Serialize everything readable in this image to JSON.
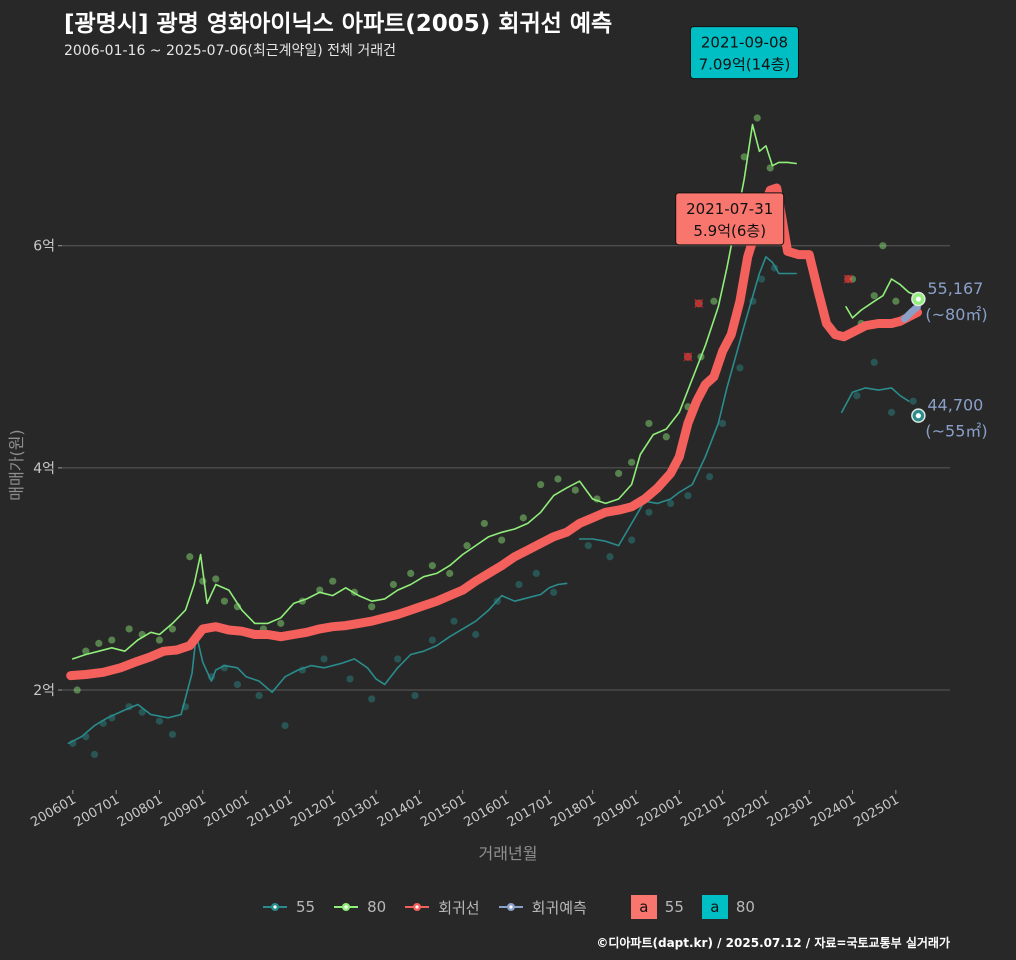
{
  "header": {
    "title": "[광명시] 광명 영화아이닉스 아파트(2005) 회귀선 예측",
    "subtitle": "2006-01-16 ~ 2025-07-06(최근계약일) 전체 거래건"
  },
  "footer": {
    "credit": "©디아파트(dapt.kr) / 2025.07.12 / 자료=국토교통부 실거래가"
  },
  "colors": {
    "background": "#282828",
    "area55": "#2a8c8c",
    "area80": "#90ee7a",
    "regression": "#f4605c",
    "forecast": "#8aa0c8",
    "grid": "#5a5a5a",
    "badge55": "#f8766d",
    "badge80": "#00bfc4"
  },
  "legend": {
    "items": [
      {
        "label": "55",
        "color": "#2a8c8c"
      },
      {
        "label": "80",
        "color": "#90ee7a"
      },
      {
        "label": "회귀선",
        "color": "#f4605c"
      },
      {
        "label": "회귀예측",
        "color": "#8aa0c8"
      }
    ],
    "badge_letter": "a",
    "badges": [
      {
        "label": "55",
        "color": "#f8766d"
      },
      {
        "label": "80",
        "color": "#00bfc4"
      }
    ]
  },
  "chart_data": {
    "type": "line",
    "xlabel": "거래년월",
    "ylabel": "매매가(원)",
    "xlim": [
      2005.75,
      2026.25
    ],
    "ylim": [
      1.1,
      7.6
    ],
    "x_ticks": [
      {
        "label": "200601",
        "x": 2006.0
      },
      {
        "label": "200701",
        "x": 2007.0
      },
      {
        "label": "200801",
        "x": 2008.0
      },
      {
        "label": "200901",
        "x": 2009.0
      },
      {
        "label": "201001",
        "x": 2010.0
      },
      {
        "label": "201101",
        "x": 2011.0
      },
      {
        "label": "201201",
        "x": 2012.0
      },
      {
        "label": "201301",
        "x": 2013.0
      },
      {
        "label": "201401",
        "x": 2014.0
      },
      {
        "label": "201501",
        "x": 2015.0
      },
      {
        "label": "201601",
        "x": 2016.0
      },
      {
        "label": "201701",
        "x": 2017.0
      },
      {
        "label": "201801",
        "x": 2018.0
      },
      {
        "label": "201901",
        "x": 2019.0
      },
      {
        "label": "202001",
        "x": 2020.0
      },
      {
        "label": "202101",
        "x": 2021.0
      },
      {
        "label": "202201",
        "x": 2022.0
      },
      {
        "label": "202301",
        "x": 2023.0
      },
      {
        "label": "202401",
        "x": 2024.0
      },
      {
        "label": "202501",
        "x": 2025.0
      }
    ],
    "y_ticks": [
      {
        "label": "2억",
        "y": 2
      },
      {
        "label": "4억",
        "y": 4
      },
      {
        "label": "6억",
        "y": 6
      }
    ],
    "grid": true,
    "series": [
      {
        "name": "55",
        "x": [
          2005.9,
          2006.2,
          2006.5,
          2006.8,
          2007.2,
          2007.5,
          2007.8,
          2008.2,
          2008.5,
          2008.75,
          2008.85,
          2009.0,
          2009.2,
          2009.3,
          2009.5,
          2009.8,
          2010.0,
          2010.3,
          2010.6,
          2010.9,
          2011.2,
          2011.5,
          2011.8,
          2012.2,
          2012.5,
          2012.8,
          2013.0,
          2013.2,
          2013.5,
          2013.8,
          2014.1,
          2014.4,
          2014.7,
          2015.0,
          2015.3,
          2015.6,
          2015.9,
          2016.2,
          2016.5,
          2016.8,
          2017.0,
          2017.2,
          2017.4
        ],
        "y": [
          1.52,
          1.58,
          1.68,
          1.75,
          1.82,
          1.87,
          1.78,
          1.75,
          1.78,
          2.15,
          2.5,
          2.25,
          2.08,
          2.18,
          2.22,
          2.2,
          2.12,
          2.08,
          1.98,
          2.12,
          2.18,
          2.22,
          2.2,
          2.24,
          2.28,
          2.2,
          2.1,
          2.05,
          2.2,
          2.32,
          2.35,
          2.4,
          2.48,
          2.55,
          2.62,
          2.72,
          2.85,
          2.8,
          2.83,
          2.86,
          2.92,
          2.95,
          2.96
        ]
      },
      {
        "name": "55",
        "x": [
          2017.7,
          2018.0,
          2018.3,
          2018.6,
          2018.9,
          2019.2,
          2019.5,
          2019.8,
          2020.0,
          2020.3,
          2020.6,
          2020.9,
          2021.1,
          2021.3,
          2021.5,
          2021.7,
          2021.85,
          2022.0,
          2022.15,
          2022.3,
          2022.5,
          2022.7
        ],
        "y": [
          3.36,
          3.36,
          3.34,
          3.3,
          3.5,
          3.7,
          3.68,
          3.72,
          3.78,
          3.85,
          4.1,
          4.4,
          4.72,
          5.0,
          5.28,
          5.55,
          5.75,
          5.9,
          5.85,
          5.75,
          5.75,
          5.75
        ]
      },
      {
        "name": "55",
        "x": [
          2023.75,
          2024.0,
          2024.3,
          2024.6,
          2024.9,
          2025.1,
          2025.3
        ],
        "y": [
          4.5,
          4.68,
          4.72,
          4.7,
          4.72,
          4.65,
          4.6
        ]
      },
      {
        "name": "80",
        "x": [
          2006.0,
          2006.3,
          2006.6,
          2006.9,
          2007.2,
          2007.5,
          2007.8,
          2008.0,
          2008.3,
          2008.6,
          2008.8,
          2008.95,
          2009.1,
          2009.3,
          2009.6,
          2009.9,
          2010.2,
          2010.5,
          2010.8,
          2011.1,
          2011.4,
          2011.7,
          2012.0,
          2012.3,
          2012.6,
          2012.9,
          2013.2,
          2013.5,
          2013.8,
          2014.1,
          2014.4,
          2014.7,
          2015.0,
          2015.3,
          2015.6,
          2015.9,
          2016.2,
          2016.5,
          2016.8,
          2017.1,
          2017.4,
          2017.7,
          2018.0,
          2018.3,
          2018.6,
          2018.9,
          2019.1,
          2019.4,
          2019.7,
          2020.0,
          2020.3,
          2020.6,
          2020.9,
          2021.1,
          2021.3,
          2021.5,
          2021.69,
          2021.85,
          2022.0,
          2022.15,
          2022.3,
          2022.5,
          2022.7
        ],
        "y": [
          2.28,
          2.32,
          2.35,
          2.38,
          2.35,
          2.45,
          2.52,
          2.5,
          2.6,
          2.72,
          2.95,
          3.22,
          2.78,
          2.95,
          2.9,
          2.72,
          2.6,
          2.6,
          2.65,
          2.78,
          2.82,
          2.88,
          2.85,
          2.92,
          2.85,
          2.8,
          2.82,
          2.9,
          2.95,
          3.02,
          3.05,
          3.12,
          3.22,
          3.3,
          3.38,
          3.42,
          3.45,
          3.5,
          3.6,
          3.75,
          3.82,
          3.88,
          3.72,
          3.68,
          3.72,
          3.85,
          4.12,
          4.3,
          4.35,
          4.5,
          4.8,
          5.1,
          5.45,
          5.8,
          6.2,
          6.6,
          7.09,
          6.85,
          6.9,
          6.72,
          6.75,
          6.75,
          6.74
        ]
      },
      {
        "name": "80",
        "x": [
          2023.85,
          2024.0,
          2024.2,
          2024.5,
          2024.7,
          2024.9,
          2025.1,
          2025.3,
          2025.5
        ],
        "y": [
          5.45,
          5.35,
          5.42,
          5.5,
          5.55,
          5.7,
          5.65,
          5.58,
          5.55
        ]
      },
      {
        "name": "회귀선",
        "x": [
          2005.95,
          2006.3,
          2006.7,
          2007.1,
          2007.5,
          2007.8,
          2008.1,
          2008.4,
          2008.7,
          2009.0,
          2009.3,
          2009.6,
          2009.9,
          2010.2,
          2010.5,
          2010.8,
          2011.1,
          2011.4,
          2011.7,
          2012.0,
          2012.3,
          2012.6,
          2012.9,
          2013.2,
          2013.5,
          2013.8,
          2014.1,
          2014.4,
          2014.7,
          2015.0,
          2015.3,
          2015.6,
          2015.9,
          2016.2,
          2016.5,
          2016.8,
          2017.1,
          2017.4,
          2017.7,
          2018.0,
          2018.3,
          2018.6,
          2018.9,
          2019.2,
          2019.5,
          2019.8,
          2020.0,
          2020.2,
          2020.4,
          2020.6,
          2020.8,
          2021.0,
          2021.2,
          2021.4,
          2021.58,
          2021.7,
          2021.9,
          2022.1,
          2022.25,
          2022.5,
          2022.75,
          2023.0,
          2023.2,
          2023.4,
          2023.6,
          2023.8,
          2024.0,
          2024.3,
          2024.6,
          2024.9,
          2025.1,
          2025.3,
          2025.5
        ],
        "y": [
          2.13,
          2.14,
          2.16,
          2.2,
          2.26,
          2.3,
          2.35,
          2.36,
          2.4,
          2.55,
          2.57,
          2.54,
          2.53,
          2.5,
          2.5,
          2.48,
          2.5,
          2.52,
          2.55,
          2.57,
          2.58,
          2.6,
          2.62,
          2.65,
          2.68,
          2.72,
          2.76,
          2.8,
          2.85,
          2.9,
          2.98,
          3.05,
          3.12,
          3.2,
          3.26,
          3.32,
          3.38,
          3.42,
          3.5,
          3.55,
          3.6,
          3.62,
          3.65,
          3.72,
          3.82,
          3.95,
          4.1,
          4.4,
          4.6,
          4.75,
          4.82,
          5.05,
          5.2,
          5.5,
          5.9,
          6.05,
          6.3,
          6.5,
          6.52,
          5.95,
          5.92,
          5.92,
          5.6,
          5.3,
          5.2,
          5.18,
          5.22,
          5.28,
          5.3,
          5.3,
          5.32,
          5.36,
          5.4
        ]
      },
      {
        "name": "회귀예측",
        "x": [
          2025.2,
          2025.35,
          2025.5
        ],
        "y": [
          5.34,
          5.4,
          5.45
        ]
      }
    ],
    "scatter": [
      {
        "name": "55",
        "points": [
          [
            2006.0,
            1.52
          ],
          [
            2006.3,
            1.58
          ],
          [
            2006.5,
            1.42
          ],
          [
            2006.7,
            1.7
          ],
          [
            2006.9,
            1.75
          ],
          [
            2007.3,
            1.85
          ],
          [
            2007.6,
            1.8
          ],
          [
            2008.0,
            1.72
          ],
          [
            2008.3,
            1.6
          ],
          [
            2008.6,
            1.85
          ],
          [
            2008.9,
            2.5
          ],
          [
            2009.2,
            2.12
          ],
          [
            2009.5,
            2.2
          ],
          [
            2009.8,
            2.05
          ],
          [
            2010.3,
            1.95
          ],
          [
            2010.9,
            1.68
          ],
          [
            2011.3,
            2.18
          ],
          [
            2011.8,
            2.28
          ],
          [
            2012.4,
            2.1
          ],
          [
            2012.9,
            1.92
          ],
          [
            2013.5,
            2.28
          ],
          [
            2013.9,
            1.95
          ],
          [
            2014.3,
            2.45
          ],
          [
            2014.8,
            2.62
          ],
          [
            2015.3,
            2.5
          ],
          [
            2015.8,
            2.8
          ],
          [
            2016.3,
            2.95
          ],
          [
            2016.7,
            3.05
          ],
          [
            2017.1,
            2.88
          ],
          [
            2017.9,
            3.3
          ],
          [
            2018.4,
            3.2
          ],
          [
            2018.9,
            3.35
          ],
          [
            2019.3,
            3.6
          ],
          [
            2019.8,
            3.68
          ],
          [
            2020.2,
            3.75
          ],
          [
            2020.7,
            3.92
          ],
          [
            2021.0,
            4.4
          ],
          [
            2021.4,
            4.9
          ],
          [
            2021.7,
            5.5
          ],
          [
            2021.9,
            5.7
          ],
          [
            2022.2,
            5.8
          ],
          [
            2024.1,
            4.65
          ],
          [
            2024.5,
            4.95
          ],
          [
            2024.9,
            4.5
          ],
          [
            2025.4,
            4.6
          ]
        ]
      },
      {
        "name": "80",
        "points": [
          [
            2006.1,
            2.0
          ],
          [
            2006.3,
            2.35
          ],
          [
            2006.6,
            2.42
          ],
          [
            2006.9,
            2.45
          ],
          [
            2007.3,
            2.55
          ],
          [
            2007.6,
            2.5
          ],
          [
            2008.0,
            2.45
          ],
          [
            2008.3,
            2.55
          ],
          [
            2008.7,
            3.2
          ],
          [
            2009.0,
            2.98
          ],
          [
            2009.3,
            3.0
          ],
          [
            2009.5,
            2.8
          ],
          [
            2009.8,
            2.75
          ],
          [
            2010.4,
            2.55
          ],
          [
            2010.8,
            2.6
          ],
          [
            2011.3,
            2.8
          ],
          [
            2011.7,
            2.9
          ],
          [
            2012.0,
            2.98
          ],
          [
            2012.5,
            2.88
          ],
          [
            2012.9,
            2.75
          ],
          [
            2013.4,
            2.95
          ],
          [
            2013.8,
            3.05
          ],
          [
            2014.3,
            3.12
          ],
          [
            2014.7,
            3.05
          ],
          [
            2015.1,
            3.3
          ],
          [
            2015.5,
            3.5
          ],
          [
            2015.9,
            3.35
          ],
          [
            2016.4,
            3.55
          ],
          [
            2016.8,
            3.85
          ],
          [
            2017.2,
            3.9
          ],
          [
            2017.6,
            3.8
          ],
          [
            2018.1,
            3.72
          ],
          [
            2018.6,
            3.95
          ],
          [
            2018.9,
            4.05
          ],
          [
            2019.3,
            4.4
          ],
          [
            2019.7,
            4.28
          ],
          [
            2020.2,
            4.55
          ],
          [
            2020.5,
            5.0
          ],
          [
            2020.8,
            5.5
          ],
          [
            2021.2,
            6.1
          ],
          [
            2021.5,
            6.8
          ],
          [
            2021.8,
            7.15
          ],
          [
            2022.1,
            6.7
          ],
          [
            2024.0,
            5.7
          ],
          [
            2024.2,
            5.3
          ],
          [
            2024.5,
            5.55
          ],
          [
            2024.7,
            6.0
          ],
          [
            2025.0,
            5.5
          ]
        ]
      },
      {
        "name": "회귀선",
        "points": [
          [
            2020.2,
            5.0
          ],
          [
            2020.45,
            5.48
          ],
          [
            2023.9,
            5.7
          ]
        ]
      }
    ],
    "end_points": [
      {
        "series": "80",
        "x": 2025.52,
        "y": 5.52,
        "value": "55,167",
        "size": "(~80㎡)"
      },
      {
        "series": "55",
        "x": 2025.52,
        "y": 4.47,
        "value": "44,700",
        "size": "(~55㎡)"
      }
    ],
    "annotations": [
      {
        "series": "80",
        "date": "2021-09-08",
        "price": "7.09억(14층)",
        "x": 2021.69,
        "y": 7.09
      },
      {
        "series": "55",
        "date": "2021-07-31",
        "price": "5.9억(6층)",
        "x": 2021.58,
        "y": 5.9
      }
    ]
  }
}
